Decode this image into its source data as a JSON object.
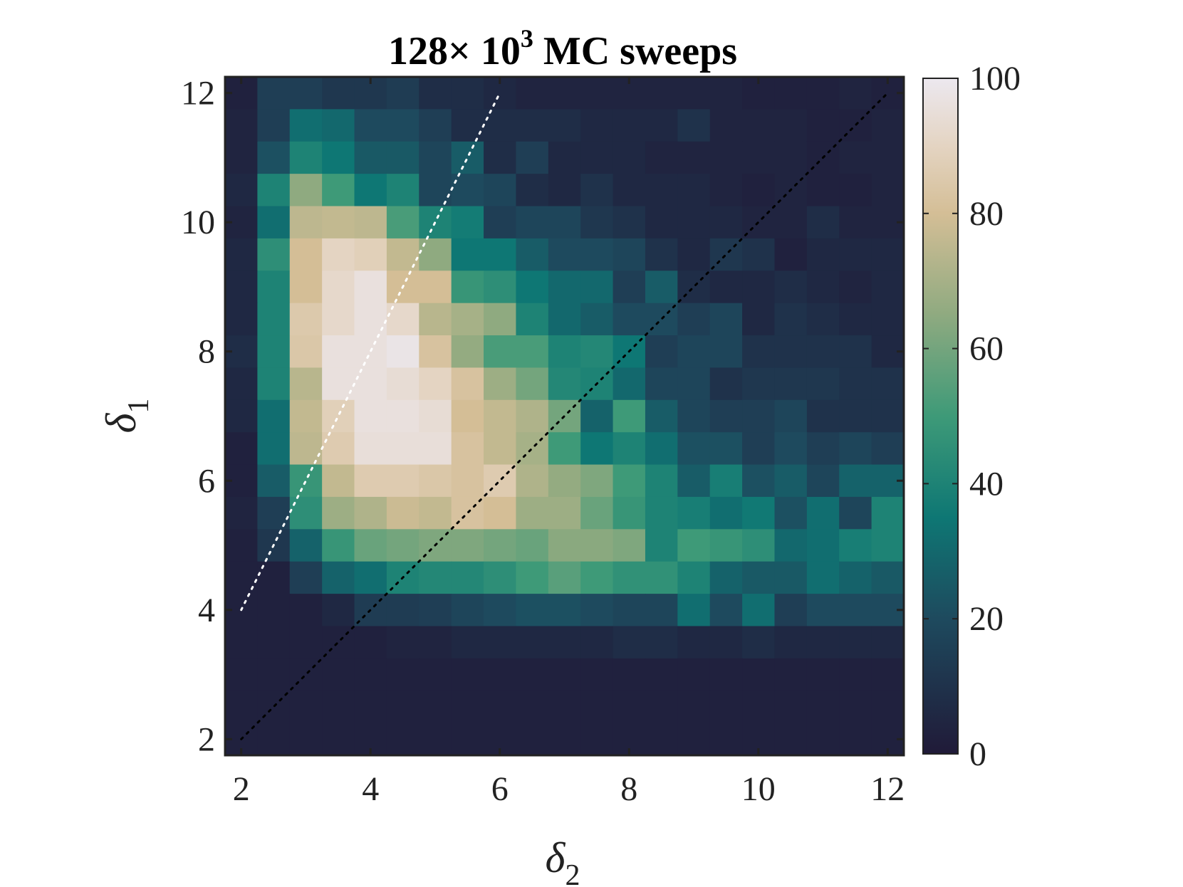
{
  "chart_data": {
    "type": "heatmap",
    "title_main": "128",
    "title_times": "× 10",
    "title_sup": "3",
    "title_tail": " MC sweeps",
    "xlabel_symbol": "δ",
    "xlabel_sub": "2",
    "ylabel_symbol": "δ",
    "ylabel_sub": "1",
    "x_range": [
      1.75,
      12.25
    ],
    "y_range": [
      1.75,
      12.25
    ],
    "x_ticks": [
      2,
      4,
      6,
      8,
      10,
      12
    ],
    "y_ticks": [
      2,
      4,
      6,
      8,
      10,
      12
    ],
    "x_tick_labels": [
      "2",
      "4",
      "6",
      "8",
      "10",
      "12"
    ],
    "y_tick_labels": [
      "2",
      "4",
      "6",
      "8",
      "10",
      "12"
    ],
    "cell_width": 0.5,
    "x_centers": [
      2,
      2.5,
      3,
      3.5,
      4,
      4.5,
      5,
      5.5,
      6,
      6.5,
      7,
      7.5,
      8,
      8.5,
      9,
      9.5,
      10,
      10.5,
      11,
      11.5,
      12
    ],
    "y_centers": [
      12,
      11.5,
      11,
      10.5,
      10,
      9.5,
      9,
      8.5,
      8,
      7.5,
      7,
      6.5,
      6,
      5.5,
      5,
      4.5,
      4,
      3.5,
      3,
      2.5,
      2
    ],
    "z": [
      [
        3,
        15,
        15,
        12,
        12,
        14,
        8,
        8,
        6,
        4,
        4,
        4,
        4,
        4,
        4,
        4,
        3,
        3,
        3,
        4,
        3
      ],
      [
        4,
        15,
        32,
        30,
        20,
        20,
        15,
        8,
        8,
        8,
        8,
        6,
        6,
        6,
        10,
        4,
        4,
        4,
        3,
        3,
        4
      ],
      [
        4,
        22,
        40,
        35,
        25,
        25,
        18,
        26,
        8,
        15,
        6,
        6,
        6,
        4,
        4,
        4,
        4,
        4,
        3,
        4,
        4
      ],
      [
        6,
        40,
        65,
        50,
        35,
        40,
        18,
        20,
        18,
        8,
        6,
        10,
        6,
        6,
        6,
        4,
        3,
        4,
        3,
        3,
        4
      ],
      [
        4,
        32,
        75,
        76,
        75,
        52,
        40,
        37,
        15,
        18,
        18,
        12,
        10,
        6,
        6,
        6,
        4,
        4,
        8,
        4,
        4
      ],
      [
        6,
        45,
        80,
        90,
        88,
        76,
        65,
        35,
        35,
        26,
        20,
        20,
        18,
        10,
        6,
        12,
        10,
        3,
        6,
        6,
        6
      ],
      [
        6,
        40,
        80,
        92,
        96,
        80,
        80,
        48,
        45,
        35,
        30,
        30,
        15,
        26,
        8,
        6,
        6,
        8,
        6,
        4,
        6
      ],
      [
        6,
        40,
        85,
        92,
        96,
        92,
        74,
        70,
        65,
        40,
        30,
        26,
        20,
        20,
        15,
        18,
        6,
        10,
        8,
        6,
        6
      ],
      [
        8,
        40,
        84,
        96,
        96,
        98,
        82,
        66,
        52,
        52,
        40,
        42,
        35,
        15,
        18,
        18,
        10,
        10,
        10,
        10,
        6
      ],
      [
        6,
        40,
        74,
        96,
        96,
        94,
        90,
        82,
        68,
        60,
        42,
        40,
        30,
        18,
        18,
        10,
        12,
        12,
        12,
        10,
        10
      ],
      [
        6,
        32,
        76,
        88,
        96,
        96,
        94,
        80,
        76,
        72,
        60,
        28,
        50,
        26,
        18,
        15,
        15,
        18,
        10,
        10,
        10
      ],
      [
        3,
        32,
        75,
        86,
        95,
        95,
        95,
        82,
        76,
        70,
        50,
        35,
        40,
        32,
        22,
        22,
        15,
        20,
        15,
        18,
        15
      ],
      [
        3,
        26,
        48,
        76,
        86,
        86,
        84,
        82,
        86,
        72,
        66,
        62,
        50,
        40,
        26,
        38,
        22,
        26,
        18,
        28,
        28
      ],
      [
        4,
        15,
        45,
        68,
        72,
        78,
        76,
        82,
        80,
        68,
        68,
        58,
        48,
        40,
        38,
        32,
        36,
        22,
        32,
        18,
        40
      ],
      [
        3,
        12,
        28,
        48,
        58,
        60,
        62,
        62,
        60,
        58,
        64,
        64,
        62,
        40,
        50,
        48,
        45,
        30,
        32,
        38,
        40
      ],
      [
        3,
        3,
        15,
        28,
        32,
        40,
        42,
        42,
        45,
        50,
        55,
        50,
        46,
        46,
        40,
        28,
        25,
        25,
        32,
        28,
        25
      ],
      [
        3,
        3,
        3,
        6,
        14,
        14,
        15,
        18,
        20,
        22,
        22,
        20,
        18,
        18,
        32,
        20,
        32,
        15,
        20,
        20,
        20
      ],
      [
        3,
        3,
        3,
        3,
        3,
        4,
        4,
        6,
        6,
        6,
        6,
        6,
        8,
        8,
        6,
        6,
        8,
        6,
        6,
        6,
        6
      ],
      [
        3,
        3,
        3,
        3,
        3,
        3,
        3,
        3,
        3,
        3,
        3,
        3,
        3,
        3,
        3,
        3,
        3,
        3,
        3,
        3,
        3
      ],
      [
        3,
        3,
        3,
        3,
        3,
        3,
        3,
        3,
        3,
        3,
        3,
        3,
        3,
        3,
        3,
        3,
        3,
        3,
        3,
        3,
        3
      ],
      [
        3,
        3,
        3,
        3,
        3,
        3,
        3,
        3,
        3,
        3,
        3,
        3,
        3,
        3,
        3,
        3,
        3,
        3,
        3,
        3,
        3
      ]
    ],
    "colorbar": {
      "range": [
        0,
        100
      ],
      "ticks": [
        0,
        20,
        40,
        60,
        80,
        100
      ],
      "tick_labels": [
        "0",
        "20",
        "40",
        "60",
        "80",
        "100"
      ],
      "colormap": [
        [
          0,
          "#201A38"
        ],
        [
          20,
          "#1E4A5E"
        ],
        [
          35,
          "#0E7774"
        ],
        [
          50,
          "#3E9A78"
        ],
        [
          65,
          "#8FAA80"
        ],
        [
          80,
          "#D4BE96"
        ],
        [
          90,
          "#E4D4C2"
        ],
        [
          100,
          "#ECE8EF"
        ]
      ]
    },
    "reference_lines": [
      {
        "color": "#ffffff",
        "style": "dotted",
        "x": [
          2,
          6
        ],
        "y": [
          4,
          12
        ]
      },
      {
        "color": "#000000",
        "style": "dotted",
        "x": [
          2,
          12
        ],
        "y": [
          2,
          12
        ]
      }
    ],
    "grid": false,
    "legend": "none"
  }
}
